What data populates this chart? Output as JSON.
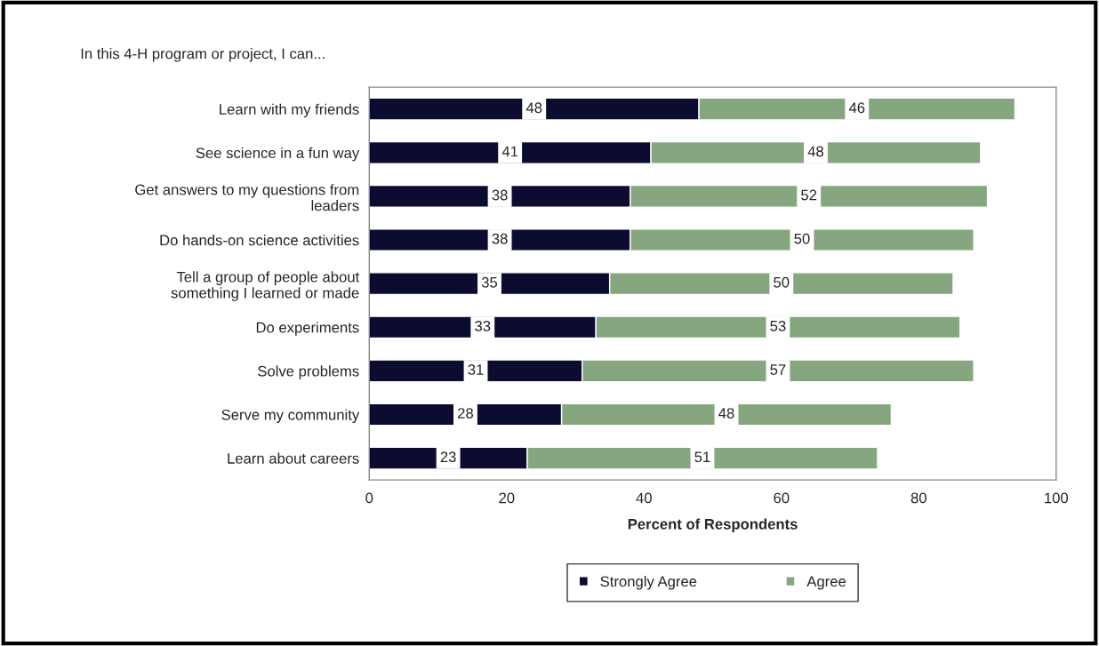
{
  "chart_data": {
    "type": "bar",
    "orientation": "horizontal",
    "stacked": true,
    "title": "In this 4-H program or project, I can...",
    "xlabel": "Percent of Respondents",
    "categories": [
      "Learn with my friends",
      "See science in a fun way",
      "Get answers to my questions from\nleaders",
      "Do hands-on science activities",
      "Tell a group of people about\nsomething I learned or made",
      "Do experiments",
      "Solve problems",
      "Serve my community",
      "Learn about careers"
    ],
    "series": [
      {
        "name": "Strongly Agree",
        "color": "#0c0c30",
        "values": [
          48,
          41,
          38,
          38,
          35,
          33,
          31,
          28,
          23
        ]
      },
      {
        "name": "Agree",
        "color": "#86a680",
        "values": [
          46,
          48,
          52,
          50,
          50,
          53,
          57,
          48,
          51
        ]
      }
    ],
    "xlim": [
      0,
      100
    ],
    "xticks": [
      0,
      20,
      40,
      60,
      80,
      100
    ],
    "data_labels": true,
    "grid": false,
    "legend": "bottom"
  }
}
